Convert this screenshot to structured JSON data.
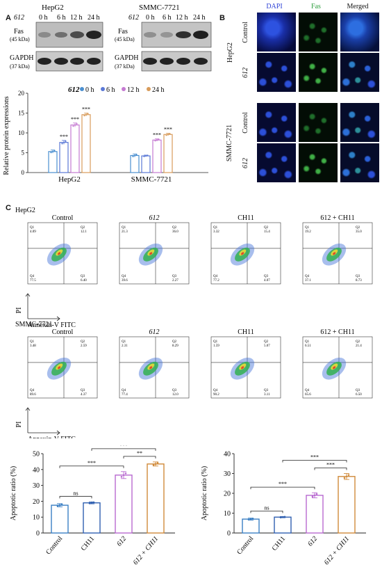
{
  "panels": {
    "a": "A",
    "b": "B",
    "c": "C"
  },
  "blot": {
    "hepg2": {
      "cell": "HepG2",
      "treat": "612",
      "times": [
        "0 h",
        "6 h",
        "12 h",
        "24 h"
      ],
      "fas": "Fas",
      "fas_kda": "(45 kDa)",
      "gapdh": "GAPDH",
      "gapdh_kda": "(37 kDa)"
    },
    "smmc": {
      "cell": "SMMC-7721",
      "treat": "612",
      "times": [
        "0 h",
        "6 h",
        "12 h",
        "24 h"
      ],
      "fas": "Fas",
      "fas_kda": "(45 kDa)",
      "gapdh": "GAPDH",
      "gapdh_kda": "(37 kDa)"
    }
  },
  "fluor": {
    "headers": [
      "DAPI",
      "Fas",
      "Merged"
    ],
    "header_colors": [
      "#2b3fd6",
      "#2e9e3e",
      "#111111"
    ],
    "groups": [
      "HepG2",
      "SMMC-7721"
    ],
    "rows": [
      "Control",
      "612"
    ]
  },
  "flow": {
    "groups": [
      {
        "cell": "HepG2",
        "panels": [
          {
            "title": "Control",
            "q1": "Q1",
            "q1v": "4.09",
            "q2": "Q2",
            "q2v": "12.1",
            "q3": "Q3",
            "q3v": "6.40",
            "q4": "Q4",
            "q4v": "77.5"
          },
          {
            "title": "612",
            "q1": "Q1",
            "q1v": "21.3",
            "q2": "Q2",
            "q2v": "36.0",
            "q3": "Q3",
            "q3v": "2.27",
            "q4": "Q4",
            "q4v": "39.6"
          },
          {
            "title": "CH11",
            "q1": "Q1",
            "q1v": "3.32",
            "q2": "Q2",
            "q2v": "15.4",
            "q3": "Q3",
            "q3v": "4.07",
            "q4": "Q4",
            "q4v": "77.2"
          },
          {
            "title": "612 + CH11",
            "q1": "Q1",
            "q1v": "19.2",
            "q2": "Q2",
            "q2v": "35.0",
            "q3": "Q3",
            "q3v": "8.73",
            "q4": "Q4",
            "q4v": "37.1"
          }
        ]
      },
      {
        "cell": "SMMC-7721",
        "panels": [
          {
            "title": "Control",
            "q1": "Q1",
            "q1v": "3.48",
            "q2": "Q2",
            "q2v": "2.59",
            "q3": "Q3",
            "q3v": "4.37",
            "q4": "Q4",
            "q4v": "89.6"
          },
          {
            "title": "612",
            "q1": "Q1",
            "q1v": "2.31",
            "q2": "Q2",
            "q2v": "8.29",
            "q3": "Q3",
            "q3v": "12.0",
            "q4": "Q4",
            "q4v": "77.4"
          },
          {
            "title": "CH11",
            "q1": "Q1",
            "q1v": "1.59",
            "q2": "Q2",
            "q2v": "5.07",
            "q3": "Q3",
            "q3v": "3.11",
            "q4": "Q4",
            "q4v": "90.2"
          },
          {
            "title": "612 + CH11",
            "q1": "Q1",
            "q1v": "6.51",
            "q2": "Q2",
            "q2v": "21.4",
            "q3": "Q3",
            "q3v": "6.50",
            "q4": "Q4",
            "q4v": "65.6"
          }
        ]
      }
    ],
    "ylabel": "PI",
    "xlabel": "Annexin-V FITC"
  },
  "chart_data": [
    {
      "type": "bar",
      "ylabel": "Relative protein expressions",
      "legend_title": "612",
      "legend_placement": "top",
      "categories": [
        "HepG2",
        "SMMC-7721"
      ],
      "ylim": [
        0,
        20
      ],
      "yticks": [
        0,
        5,
        10,
        15,
        20
      ],
      "series": [
        {
          "name": "0 h",
          "color": "#4a8fd0",
          "values": [
            5.3,
            4.3
          ],
          "err": [
            0.4,
            0.4
          ],
          "sig": [
            "",
            ""
          ]
        },
        {
          "name": "6 h",
          "color": "#5a78d6",
          "values": [
            7.6,
            4.2
          ],
          "err": [
            0.5,
            0.2
          ],
          "sig": [
            "***",
            ""
          ]
        },
        {
          "name": "12 h",
          "color": "#c57ad2",
          "values": [
            12.0,
            8.2
          ],
          "err": [
            0.5,
            0.3
          ],
          "sig": [
            "***",
            "***"
          ]
        },
        {
          "name": "24 h",
          "color": "#d89b5a",
          "values": [
            14.6,
            9.6
          ],
          "err": [
            0.4,
            0.3
          ],
          "sig": [
            "***",
            "***"
          ]
        }
      ]
    },
    {
      "type": "bar",
      "ylabel": "Apoptotic ratio (%)",
      "categories": [
        "Control",
        "CH11",
        "612",
        "612 + CH11"
      ],
      "colors": [
        "#3a7fc4",
        "#2f5fb0",
        "#b86ad0",
        "#d08a3a"
      ],
      "values": [
        17.5,
        19.0,
        36.5,
        43.5
      ],
      "err": [
        1.0,
        0.6,
        2.2,
        1.3
      ],
      "ylim": [
        0,
        50
      ],
      "yticks": [
        0,
        10,
        20,
        30,
        40,
        50
      ],
      "brackets": [
        {
          "from": 0,
          "to": 1,
          "label": "ns"
        },
        {
          "from": 0,
          "to": 2,
          "label": "***"
        },
        {
          "from": 2,
          "to": 3,
          "label": "**"
        },
        {
          "from": 1,
          "to": 3,
          "label": "***"
        }
      ]
    },
    {
      "type": "bar",
      "ylabel": "Apoptotic ratio (%)",
      "categories": [
        "Control",
        "CH11",
        "612",
        "612 + CH11"
      ],
      "colors": [
        "#3a7fc4",
        "#2f5fb0",
        "#b86ad0",
        "#d08a3a"
      ],
      "values": [
        7.0,
        8.0,
        19.0,
        28.5
      ],
      "err": [
        0.5,
        0.3,
        1.3,
        1.5
      ],
      "ylim": [
        0,
        40
      ],
      "yticks": [
        0,
        10,
        20,
        30,
        40
      ],
      "brackets": [
        {
          "from": 0,
          "to": 1,
          "label": "ns"
        },
        {
          "from": 0,
          "to": 2,
          "label": "***"
        },
        {
          "from": 2,
          "to": 3,
          "label": "***"
        },
        {
          "from": 1,
          "to": 3,
          "label": "***"
        }
      ]
    }
  ]
}
